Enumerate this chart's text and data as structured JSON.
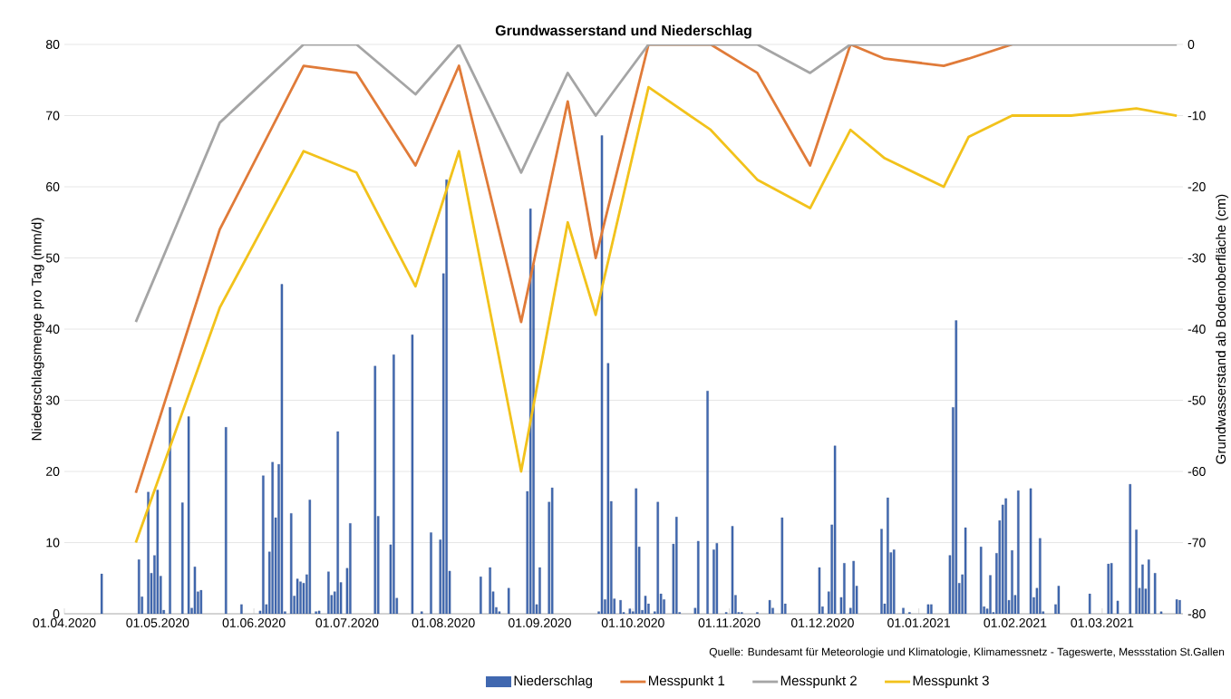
{
  "chart_data": {
    "type": "line",
    "title": "Grundwasserstand und Niederschlag",
    "ylabel": "Niederschlagsmenge pro Tag (mm/d)",
    "y2label": "Grundwasserstand ab Bodenoberfläche (cm)",
    "annotations": [
      "Quelle: Bundesamt für Meteorologie und Klimatologie, Klimamessnetz - Tageswerte, Messstation St.Gallen"
    ],
    "xlim": [
      "2020-04-01",
      "2021-03-27"
    ],
    "xticks": [
      {
        "value": "2020-04-01",
        "label": "01.04.2020"
      },
      {
        "value": "2020-05-01",
        "label": "01.05.2020"
      },
      {
        "value": "2020-06-01",
        "label": "01.06.2020"
      },
      {
        "value": "2020-07-01",
        "label": "01.07.2020"
      },
      {
        "value": "2020-08-01",
        "label": "01.08.2020"
      },
      {
        "value": "2020-09-01",
        "label": "01.09.2020"
      },
      {
        "value": "2020-10-01",
        "label": "01.10.2020"
      },
      {
        "value": "2020-11-01",
        "label": "01.11.2020"
      },
      {
        "value": "2020-12-01",
        "label": "01.12.2020"
      },
      {
        "value": "2021-01-01",
        "label": "01.01.2021"
      },
      {
        "value": "2021-02-01",
        "label": "01.02.2021"
      },
      {
        "value": "2021-03-01",
        "label": "01.03.2021"
      }
    ],
    "ylim": [
      0,
      80
    ],
    "yticks": [
      0,
      10,
      20,
      30,
      40,
      50,
      60,
      70,
      80
    ],
    "y2lim": [
      -80,
      0
    ],
    "y2ticks": [
      -80,
      -70,
      -60,
      -50,
      -40,
      -30,
      -20,
      -10,
      0
    ],
    "grid": "y",
    "legend": "bottom",
    "x": [
      "2020-04-24",
      "2020-05-21",
      "2020-06-17",
      "2020-07-04",
      "2020-07-23",
      "2020-08-06",
      "2020-08-26",
      "2020-09-10",
      "2020-09-19",
      "2020-10-06",
      "2020-10-26",
      "2020-11-10",
      "2020-11-27",
      "2020-12-10",
      "2020-12-21",
      "2021-01-09",
      "2021-01-17",
      "2021-01-31",
      "2021-02-19",
      "2021-03-12",
      "2021-03-25"
    ],
    "series": [
      {
        "name": "Niederschlag",
        "type": "bar",
        "color": "#4068b0",
        "x": [
          "2020-04-13",
          "2020-04-25",
          "2020-04-26",
          "2020-04-28",
          "2020-04-29",
          "2020-04-30",
          "2020-05-01",
          "2020-05-02",
          "2020-05-03",
          "2020-05-05",
          "2020-05-09",
          "2020-05-11",
          "2020-05-12",
          "2020-05-13",
          "2020-05-14",
          "2020-05-15",
          "2020-05-23",
          "2020-05-28",
          "2020-06-03",
          "2020-06-04",
          "2020-06-05",
          "2020-06-06",
          "2020-06-07",
          "2020-06-08",
          "2020-06-09",
          "2020-06-10",
          "2020-06-11",
          "2020-06-13",
          "2020-06-14",
          "2020-06-15",
          "2020-06-16",
          "2020-06-17",
          "2020-06-18",
          "2020-06-19",
          "2020-06-21",
          "2020-06-22",
          "2020-06-25",
          "2020-06-26",
          "2020-06-27",
          "2020-06-28",
          "2020-06-29",
          "2020-07-01",
          "2020-07-02",
          "2020-07-10",
          "2020-07-11",
          "2020-07-15",
          "2020-07-16",
          "2020-07-17",
          "2020-07-22",
          "2020-07-25",
          "2020-07-28",
          "2020-07-31",
          "2020-08-01",
          "2020-08-02",
          "2020-08-03",
          "2020-08-13",
          "2020-08-16",
          "2020-08-17",
          "2020-08-18",
          "2020-08-19",
          "2020-08-22",
          "2020-08-28",
          "2020-08-29",
          "2020-08-30",
          "2020-08-31",
          "2020-09-01",
          "2020-09-04",
          "2020-09-05",
          "2020-09-20",
          "2020-09-21",
          "2020-09-22",
          "2020-09-23",
          "2020-09-24",
          "2020-09-25",
          "2020-09-27",
          "2020-09-28",
          "2020-09-30",
          "2020-10-01",
          "2020-10-02",
          "2020-10-03",
          "2020-10-04",
          "2020-10-05",
          "2020-10-06",
          "2020-10-08",
          "2020-10-09",
          "2020-10-10",
          "2020-10-11",
          "2020-10-14",
          "2020-10-15",
          "2020-10-16",
          "2020-10-21",
          "2020-10-22",
          "2020-10-25",
          "2020-10-27",
          "2020-10-28",
          "2020-10-31",
          "2020-11-02",
          "2020-11-03",
          "2020-11-04",
          "2020-11-05",
          "2020-11-10",
          "2020-11-14",
          "2020-11-15",
          "2020-11-18",
          "2020-11-19",
          "2020-11-30",
          "2020-12-01",
          "2020-12-03",
          "2020-12-04",
          "2020-12-05",
          "2020-12-07",
          "2020-12-08",
          "2020-12-10",
          "2020-12-11",
          "2020-12-12",
          "2020-12-20",
          "2020-12-21",
          "2020-12-22",
          "2020-12-23",
          "2020-12-24",
          "2020-12-27",
          "2020-12-29",
          "2021-01-04",
          "2021-01-05",
          "2021-01-11",
          "2021-01-12",
          "2021-01-13",
          "2021-01-14",
          "2021-01-15",
          "2021-01-16",
          "2021-01-21",
          "2021-01-22",
          "2021-01-23",
          "2021-01-24",
          "2021-01-25",
          "2021-01-26",
          "2021-01-27",
          "2021-01-28",
          "2021-01-29",
          "2021-01-30",
          "2021-01-31",
          "2021-02-01",
          "2021-02-02",
          "2021-02-06",
          "2021-02-07",
          "2021-02-08",
          "2021-02-09",
          "2021-02-10",
          "2021-02-14",
          "2021-02-15",
          "2021-02-25",
          "2021-03-03",
          "2021-03-04",
          "2021-03-06",
          "2021-03-10",
          "2021-03-12",
          "2021-03-13",
          "2021-03-14",
          "2021-03-15",
          "2021-03-16",
          "2021-03-18",
          "2021-03-20",
          "2021-03-25",
          "2021-03-26"
        ],
        "values": [
          5.6,
          7.6,
          2.4,
          17.1,
          5.7,
          8.2,
          17.4,
          5.3,
          0.5,
          29.0,
          15.6,
          27.7,
          0.8,
          6.6,
          3.1,
          3.3,
          26.2,
          1.3,
          0.4,
          19.4,
          1.3,
          8.7,
          21.3,
          13.5,
          21.0,
          46.3,
          0.3,
          14.1,
          2.5,
          4.9,
          4.5,
          4.3,
          5.5,
          16.0,
          0.3,
          0.4,
          5.9,
          2.6,
          3.1,
          25.6,
          4.4,
          6.4,
          12.7,
          34.8,
          13.7,
          9.7,
          36.4,
          2.2,
          39.2,
          0.3,
          11.4,
          10.4,
          47.8,
          61.0,
          6.0,
          5.2,
          6.5,
          3.1,
          0.9,
          0.3,
          3.6,
          17.2,
          56.9,
          49.0,
          1.3,
          6.5,
          15.7,
          17.7,
          0.3,
          67.2,
          2.0,
          35.2,
          15.8,
          2.1,
          1.9,
          0.2,
          0.7,
          0.3,
          17.6,
          9.4,
          0.5,
          2.5,
          1.4,
          0.3,
          15.7,
          2.8,
          2.0,
          9.8,
          13.6,
          0.2,
          0.8,
          10.2,
          31.3,
          9.0,
          9.9,
          0.2,
          12.3,
          2.6,
          0.2,
          0.2,
          0.2,
          1.9,
          0.8,
          13.5,
          1.4,
          6.5,
          1.0,
          3.1,
          12.5,
          23.6,
          2.3,
          7.1,
          0.8,
          7.4,
          3.9,
          11.9,
          1.4,
          16.3,
          8.6,
          9.0,
          0.8,
          0.2,
          1.3,
          1.3,
          8.2,
          29.0,
          41.2,
          4.3,
          5.5,
          12.1,
          9.4,
          1.0,
          0.7,
          5.4,
          0.2,
          8.5,
          13.1,
          15.3,
          16.2,
          1.9,
          8.9,
          2.6,
          17.3,
          17.6,
          2.3,
          3.6,
          10.6,
          0.3,
          1.3,
          3.9,
          2.8,
          7.0,
          7.1,
          1.8,
          18.2,
          11.8,
          3.6,
          6.9,
          3.5,
          7.6,
          5.7,
          0.3,
          2.0,
          1.9
        ]
      },
      {
        "name": "Messpunkt 1",
        "axis": "y2",
        "color": "#e07b39",
        "values": [
          -63,
          -26,
          -3,
          -4,
          -17,
          -3,
          -39,
          -8,
          -30,
          0,
          0,
          -4,
          -17,
          0,
          -2,
          -3,
          -2,
          0,
          null,
          null,
          null
        ]
      },
      {
        "name": "Messpunkt 2",
        "axis": "y2",
        "color": "#a5a5a5",
        "values": [
          -39,
          -11,
          0,
          0,
          -7,
          0,
          -18,
          -4,
          -10,
          0,
          0,
          0,
          -4,
          0,
          0,
          0,
          0,
          0,
          0,
          0,
          0
        ]
      },
      {
        "name": "Messpunkt 3",
        "axis": "y2",
        "color": "#f2c21b",
        "values": [
          -70,
          -37,
          -15,
          -18,
          -34,
          -15,
          -60,
          -25,
          -38,
          -6,
          -12,
          -19,
          -23,
          -12,
          -16,
          -20,
          -13,
          -10,
          -10,
          -9,
          -10
        ]
      }
    ]
  }
}
